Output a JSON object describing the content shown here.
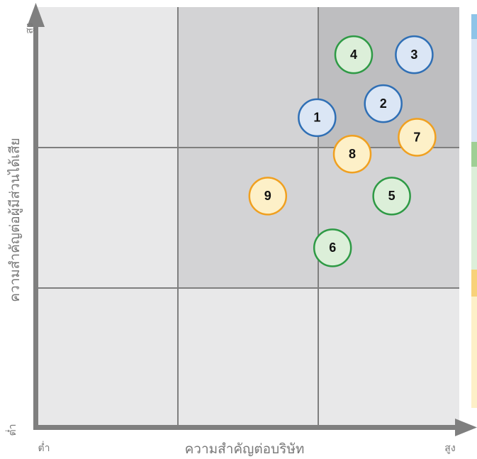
{
  "chart_data": {
    "type": "scatter",
    "xlabel": "ความสำคัญต่อบริษัท",
    "ylabel": "ความสำคัญต่อผู้มีส่วนได้เสีย",
    "xlim": [
      0,
      3
    ],
    "ylim": [
      0,
      3
    ],
    "xticks": [
      {
        "value": 0,
        "label": "ต่ำ"
      },
      {
        "value": 3,
        "label": "สูง"
      }
    ],
    "yticks": [
      {
        "value": 0,
        "label": "ต่ำ"
      },
      {
        "value": 3,
        "label": "สูง"
      }
    ],
    "series": [
      {
        "color": "#2f6fb5",
        "fill": "#dbe6f5",
        "labels": [
          "1",
          "2",
          "3"
        ],
        "x": [
          1.99,
          2.46,
          2.68
        ],
        "y": [
          2.21,
          2.31,
          2.66
        ]
      },
      {
        "color": "#2e9a45",
        "fill": "#dcefd9",
        "labels": [
          "4",
          "5",
          "6"
        ],
        "x": [
          2.25,
          2.52,
          2.1
        ],
        "y": [
          2.66,
          1.65,
          1.28
        ]
      },
      {
        "color": "#f0a020",
        "fill": "#fdf0c8",
        "labels": [
          "7",
          "8",
          "9"
        ],
        "x": [
          2.7,
          2.24,
          1.64
        ],
        "y": [
          2.07,
          1.95,
          1.65
        ]
      }
    ]
  }
}
